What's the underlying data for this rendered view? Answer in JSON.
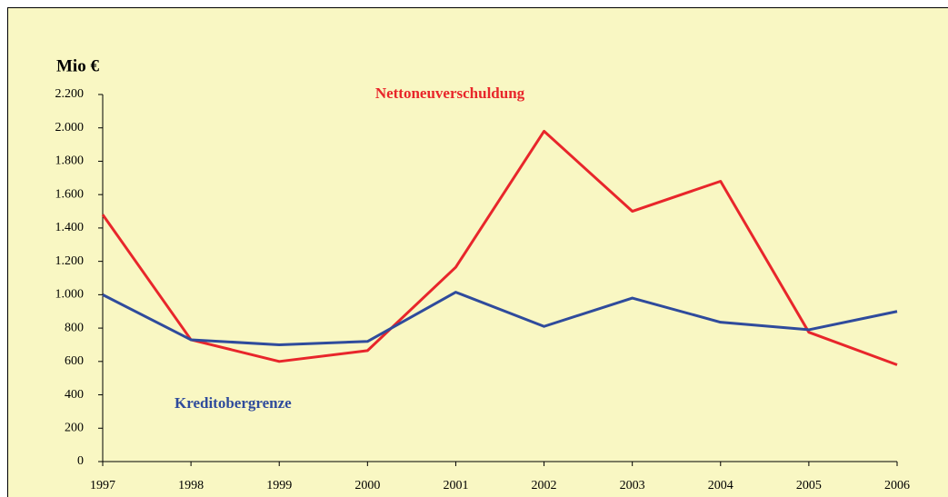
{
  "chart_data": {
    "type": "line",
    "y_label": "Mio €",
    "x": [
      1997,
      1998,
      1999,
      2000,
      2001,
      2002,
      2003,
      2004,
      2005,
      2006
    ],
    "xlim": [
      1997,
      2006
    ],
    "xticks": [
      1997,
      1998,
      1999,
      2000,
      2001,
      2002,
      2003,
      2004,
      2005,
      2006
    ],
    "ylim": [
      0,
      2200
    ],
    "yticks": [
      0,
      200,
      400,
      600,
      800,
      {
        "value": 1000,
        "label": "1.000"
      },
      {
        "value": 1200,
        "label": "1.200"
      },
      {
        "value": 1400,
        "label": "1.400"
      },
      {
        "value": 1600,
        "label": "1.600"
      },
      {
        "value": 1800,
        "label": "1.800"
      },
      {
        "value": 2000,
        "label": "2.000"
      },
      {
        "value": 2200,
        "label": "2.200"
      }
    ],
    "grid": false,
    "series": [
      {
        "name": "Nettoneuverschuldung",
        "color": "#e8262b",
        "values": [
          1480,
          730,
          600,
          665,
          1165,
          1980,
          1500,
          1680,
          775,
          580
        ]
      },
      {
        "name": "Kreditobergrenze",
        "color": "#2f4b9c",
        "values": [
          1000,
          730,
          700,
          720,
          1015,
          810,
          980,
          835,
          790,
          900
        ]
      }
    ]
  }
}
